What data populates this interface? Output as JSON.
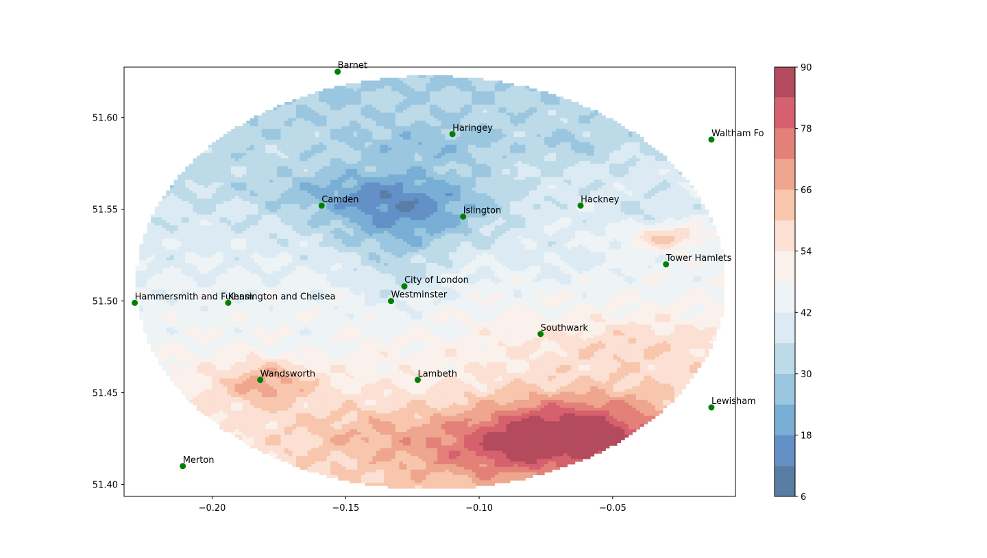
{
  "chart_data": {
    "type": "contour",
    "title": "",
    "xlabel": "",
    "ylabel": "",
    "xlim": [
      -0.233,
      -0.004
    ],
    "ylim": [
      51.3935,
      51.6275
    ],
    "x_ticks": [
      -0.2,
      -0.15,
      -0.1,
      -0.05
    ],
    "x_tick_labels": [
      "−0.20",
      "−0.15",
      "−0.10",
      "−0.05"
    ],
    "y_ticks": [
      51.4,
      51.45,
      51.5,
      51.55,
      51.6
    ],
    "y_tick_labels": [
      "51.40",
      "51.45",
      "51.50",
      "51.55",
      "51.60"
    ],
    "grid": false,
    "colormap": "RdBu_r",
    "colorbar": {
      "levels": [
        6,
        12,
        18,
        24,
        30,
        36,
        42,
        48,
        54,
        60,
        66,
        72,
        78,
        84,
        90
      ],
      "tick_values": [
        6,
        18,
        30,
        42,
        54,
        66,
        78,
        90
      ],
      "tick_labels": [
        "6",
        "18",
        "30",
        "42",
        "54",
        "66",
        "78",
        "90"
      ],
      "colors": [
        "#5a7ea3",
        "#6390c7",
        "#79aed5",
        "#9bc6df",
        "#bcdae8",
        "#dcebf3",
        "#eef3f5",
        "#faf1ec",
        "#fbe0d3",
        "#f7c6ad",
        "#eea68f",
        "#e38179",
        "#d6606d",
        "#b44a5d"
      ]
    },
    "marker_color": "#008000",
    "series": [
      {
        "name": "Barnet",
        "x": -0.153,
        "y": 51.625
      },
      {
        "name": "Haringey",
        "x": -0.11,
        "y": 51.591
      },
      {
        "name": "Waltham Forest",
        "x": -0.013,
        "y": 51.588
      },
      {
        "name": "Camden",
        "x": -0.159,
        "y": 51.552
      },
      {
        "name": "Islington",
        "x": -0.106,
        "y": 51.546
      },
      {
        "name": "Hackney",
        "x": -0.062,
        "y": 51.552
      },
      {
        "name": "Tower Hamlets",
        "x": -0.03,
        "y": 51.52
      },
      {
        "name": "City of London",
        "x": -0.128,
        "y": 51.508
      },
      {
        "name": "Westminster",
        "x": -0.133,
        "y": 51.5
      },
      {
        "name": "Hammersmith and Fulham",
        "x": -0.229,
        "y": 51.499
      },
      {
        "name": "Kensington and Chelsea",
        "x": -0.194,
        "y": 51.499
      },
      {
        "name": "Southwark",
        "x": -0.077,
        "y": 51.482
      },
      {
        "name": "Wandsworth",
        "x": -0.182,
        "y": 51.457
      },
      {
        "name": "Lambeth",
        "x": -0.123,
        "y": 51.457
      },
      {
        "name": "Lewisham",
        "x": -0.013,
        "y": 51.442
      },
      {
        "name": "Merton",
        "x": -0.211,
        "y": 51.41
      }
    ],
    "visible_labels": {
      "Waltham Forest": "Waltham Fo"
    }
  }
}
